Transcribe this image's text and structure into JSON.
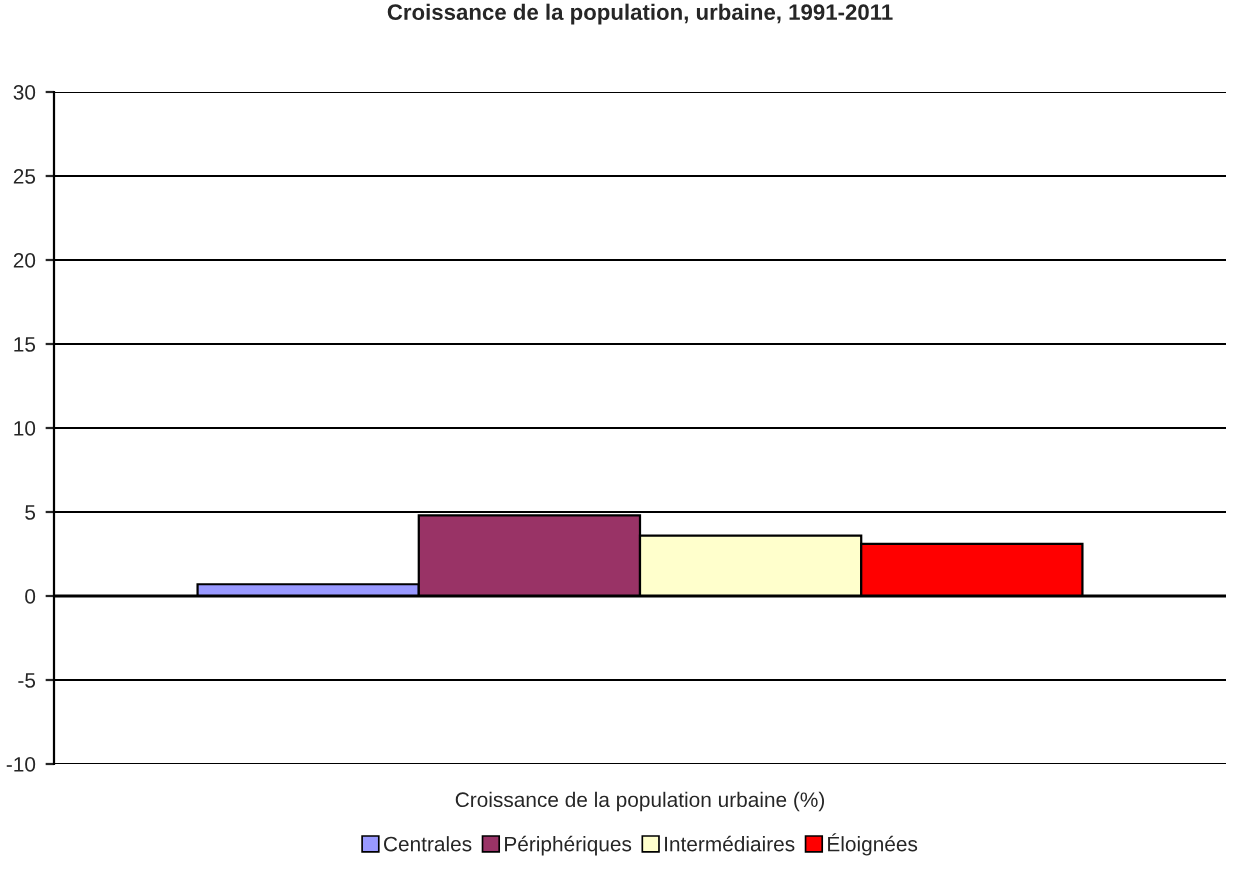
{
  "chart_data": {
    "type": "bar",
    "title": "Croissance de la population, urbaine, 1991-2011",
    "categories": [
      "Croissance de la population urbaine (%)"
    ],
    "series": [
      {
        "name": "Centrales",
        "color": "#9999ff",
        "values": [
          0.7
        ]
      },
      {
        "name": "Périphériques",
        "color": "#993366",
        "values": [
          4.8
        ]
      },
      {
        "name": "Intermédiaires",
        "color": "#ffffcc",
        "values": [
          3.6
        ]
      },
      {
        "name": "Éloignées",
        "color": "#ff0000",
        "values": [
          3.1
        ]
      }
    ],
    "ylim": [
      -10,
      30
    ],
    "yticks": [
      -10,
      -5,
      0,
      5,
      10,
      15,
      20,
      25,
      30
    ],
    "grid": "y",
    "legend": "bottom"
  }
}
